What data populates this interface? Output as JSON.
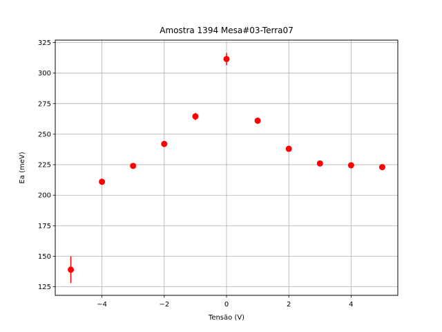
{
  "chart_data": {
    "type": "scatter",
    "title": "Amostra 1394 Mesa#03-Terra07",
    "xlabel": "Tensão (V)",
    "ylabel": "Ea (meV)",
    "xlim": [
      -5.5,
      5.5
    ],
    "ylim": [
      118,
      327
    ],
    "xticks": [
      -4,
      -2,
      0,
      2,
      4
    ],
    "xtick_labels": [
      "−4",
      "−2",
      "0",
      "2",
      "4"
    ],
    "yticks": [
      125,
      150,
      175,
      200,
      225,
      250,
      275,
      300,
      325
    ],
    "ytick_labels": [
      "125",
      "150",
      "175",
      "200",
      "225",
      "250",
      "275",
      "300",
      "325"
    ],
    "grid": true,
    "color": "#ff0000",
    "x": [
      -5,
      -4,
      -3,
      -2,
      -1,
      0,
      1,
      2,
      3,
      4,
      5
    ],
    "y": [
      139,
      211,
      224,
      242,
      264.5,
      311.5,
      261,
      238,
      226,
      224.5,
      223
    ],
    "yerr": [
      11,
      1.5,
      1.5,
      1.5,
      3,
      5,
      2,
      1.5,
      1.5,
      1.5,
      2
    ]
  }
}
